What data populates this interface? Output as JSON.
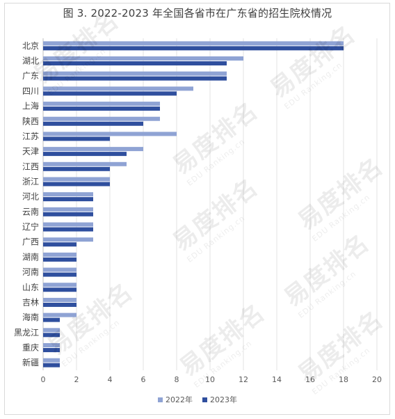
{
  "chart_data": {
    "type": "bar",
    "orientation": "horizontal",
    "title": "图 3. 2022-2023 年全国各省市在广东省的招生院校情况",
    "categories": [
      "北京",
      "湖北",
      "广东",
      "四川",
      "上海",
      "陕西",
      "江苏",
      "天津",
      "江西",
      "浙江",
      "河北",
      "云南",
      "辽宁",
      "广西",
      "湖南",
      "河南",
      "山东",
      "吉林",
      "海南",
      "黑龙江",
      "重庆",
      "新疆"
    ],
    "series": [
      {
        "name": "2022年",
        "color": "#8fa3d4",
        "values": [
          18,
          12,
          11,
          9,
          7,
          7,
          8,
          6,
          5,
          4,
          3,
          3,
          3,
          3,
          2,
          2,
          2,
          2,
          2,
          1,
          1,
          1
        ]
      },
      {
        "name": "2023年",
        "color": "#2f4f9e",
        "values": [
          18,
          11,
          11,
          8,
          7,
          6,
          4,
          5,
          4,
          4,
          3,
          3,
          3,
          2,
          2,
          2,
          2,
          2,
          1,
          1,
          1,
          1
        ]
      }
    ],
    "xlim": [
      0,
      20
    ],
    "xticks": [
      0,
      2,
      4,
      6,
      8,
      10,
      12,
      14,
      16,
      18,
      20
    ],
    "grid": true,
    "legend_position": "bottom"
  },
  "watermark": {
    "name": "易度排名",
    "sub": "EDU Ranking.cn"
  }
}
